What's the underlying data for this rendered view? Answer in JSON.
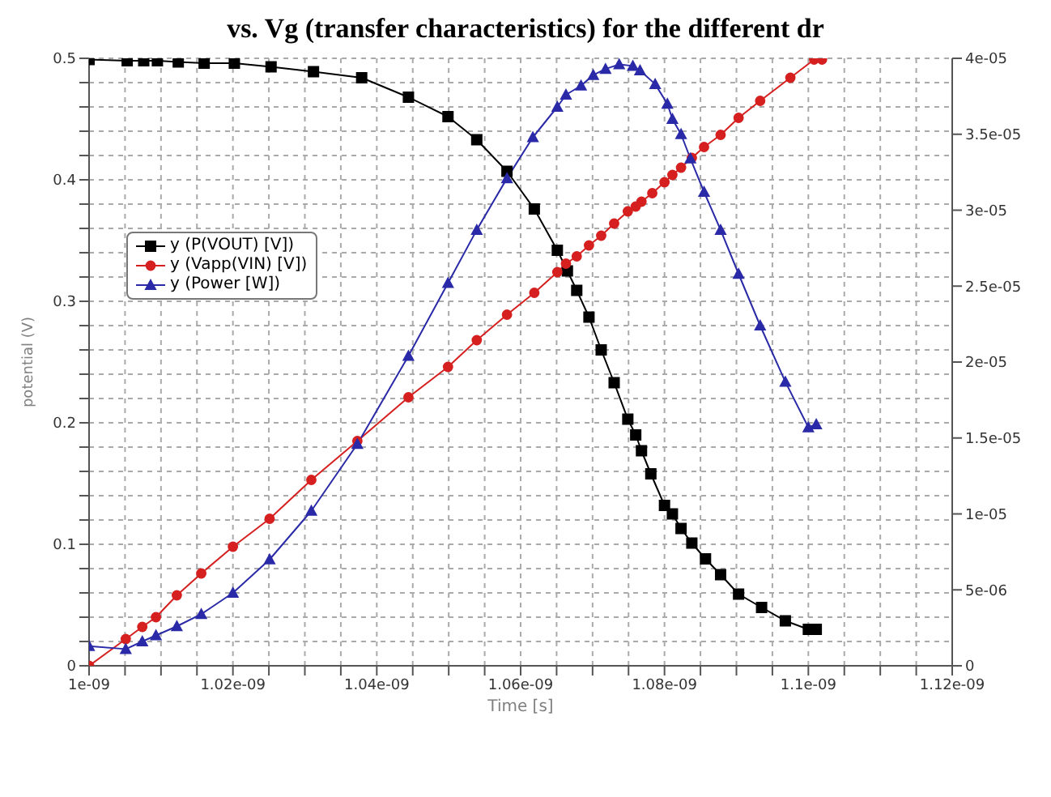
{
  "chart_data": {
    "type": "line",
    "title": "vs. Vg (transfer characteristics) for the different dr",
    "xlabel": "Time [s]",
    "ylabel": "potential (V)",
    "xlim": [
      1e-09,
      1.12e-09
    ],
    "xticks": [
      {
        "value": 1e-09,
        "label": "1e-09"
      },
      {
        "value": 1.005e-09,
        "label": null
      },
      {
        "value": 1.01e-09,
        "label": null
      },
      {
        "value": 1.015e-09,
        "label": null
      },
      {
        "value": 1.02e-09,
        "label": "1.02e-09"
      },
      {
        "value": 1.025e-09,
        "label": null
      },
      {
        "value": 1.03e-09,
        "label": null
      },
      {
        "value": 1.035e-09,
        "label": null
      },
      {
        "value": 1.04e-09,
        "label": "1.04e-09"
      },
      {
        "value": 1.045e-09,
        "label": null
      },
      {
        "value": 1.05e-09,
        "label": null
      },
      {
        "value": 1.055e-09,
        "label": null
      },
      {
        "value": 1.06e-09,
        "label": "1.06e-09"
      },
      {
        "value": 1.065e-09,
        "label": null
      },
      {
        "value": 1.07e-09,
        "label": null
      },
      {
        "value": 1.075e-09,
        "label": null
      },
      {
        "value": 1.08e-09,
        "label": "1.08e-09"
      },
      {
        "value": 1.085e-09,
        "label": null
      },
      {
        "value": 1.09e-09,
        "label": null
      },
      {
        "value": 1.095e-09,
        "label": null
      },
      {
        "value": 1.1e-09,
        "label": "1.1e-09"
      },
      {
        "value": 1.105e-09,
        "label": null
      },
      {
        "value": 1.11e-09,
        "label": null
      },
      {
        "value": 1.115e-09,
        "label": null
      },
      {
        "value": 1.12e-09,
        "label": "1.12e-09"
      }
    ],
    "ylim": [
      0,
      0.5
    ],
    "yticks": [
      0,
      {
        "value": 0.02,
        "label": null
      },
      {
        "value": 0.04,
        "label": null
      },
      {
        "value": 0.06,
        "label": null
      },
      {
        "value": 0.08,
        "label": null
      },
      0.1,
      {
        "value": 0.12,
        "label": null
      },
      {
        "value": 0.14,
        "label": null
      },
      {
        "value": 0.16,
        "label": null
      },
      {
        "value": 0.18,
        "label": null
      },
      0.2,
      {
        "value": 0.22,
        "label": null
      },
      {
        "value": 0.24,
        "label": null
      },
      {
        "value": 0.26,
        "label": null
      },
      {
        "value": 0.28,
        "label": null
      },
      0.3,
      {
        "value": 0.32,
        "label": null
      },
      {
        "value": 0.34,
        "label": null
      },
      {
        "value": 0.36,
        "label": null
      },
      {
        "value": 0.38,
        "label": null
      },
      0.4,
      {
        "value": 0.42,
        "label": null
      },
      {
        "value": 0.44,
        "label": null
      },
      {
        "value": 0.46,
        "label": null
      },
      {
        "value": 0.48,
        "label": null
      },
      0.5
    ],
    "y2lim": [
      0,
      4e-05
    ],
    "y2ticks": [
      0,
      {
        "value": 5e-06,
        "label": "5e-06"
      },
      {
        "value": 1e-05,
        "label": "1e-05"
      },
      {
        "value": 1.5e-05,
        "label": "1.5e-05"
      },
      {
        "value": 2e-05,
        "label": "2e-05"
      },
      {
        "value": 2.5e-05,
        "label": "2.5e-05"
      },
      {
        "value": 3e-05,
        "label": "3e-05"
      },
      {
        "value": 3.5e-05,
        "label": "3.5e-05"
      },
      {
        "value": 4e-05,
        "label": "4e-05"
      }
    ],
    "grid": true,
    "legend": "left",
    "line_style": "solid",
    "series": [
      {
        "name": "y (P(VOUT) [V])",
        "color": "#000000",
        "marker": "square",
        "x": [
          1e-09,
          1.0053e-09,
          1.0076e-09,
          1.0095e-09,
          1.0124e-09,
          1.016e-09,
          1.0202e-09,
          1.0253e-09,
          1.0312e-09,
          1.0379e-09,
          1.0444e-09,
          1.0499e-09,
          1.0539e-09,
          1.0581e-09,
          1.0619e-09,
          1.0651e-09,
          1.0665e-09,
          1.0678e-09,
          1.0695e-09,
          1.0712e-09,
          1.073e-09,
          1.0749e-09,
          1.076e-09,
          1.0768e-09,
          1.0781e-09,
          1.08e-09,
          1.0811e-09,
          1.0823e-09,
          1.0838e-09,
          1.0857e-09,
          1.0878e-09,
          1.0903e-09,
          1.0935e-09,
          1.0968e-09,
          1.1e-09,
          1.1011e-09
        ],
        "values": [
          0.499,
          0.498,
          0.498,
          0.498,
          0.497,
          0.496,
          0.496,
          0.493,
          0.489,
          0.484,
          0.468,
          0.452,
          0.433,
          0.407,
          0.376,
          0.342,
          0.325,
          0.309,
          0.287,
          0.26,
          0.233,
          0.203,
          0.19,
          0.177,
          0.158,
          0.132,
          0.125,
          0.113,
          0.101,
          0.088,
          0.075,
          0.059,
          0.048,
          0.037,
          0.03,
          0.03
        ]
      },
      {
        "name": "y (Vapp(VIN) [V])",
        "color": "#d62020",
        "marker": "circle",
        "x": [
          1e-09,
          1.0051e-09,
          1.0074e-09,
          1.0093e-09,
          1.0122e-09,
          1.0156e-09,
          1.02e-09,
          1.0251e-09,
          1.0309e-09,
          1.0373e-09,
          1.0444e-09,
          1.0499e-09,
          1.0539e-09,
          1.0581e-09,
          1.0619e-09,
          1.0651e-09,
          1.0663e-09,
          1.0678e-09,
          1.0695e-09,
          1.0712e-09,
          1.073e-09,
          1.0749e-09,
          1.076e-09,
          1.0768e-09,
          1.0783e-09,
          1.08e-09,
          1.0811e-09,
          1.0823e-09,
          1.0838e-09,
          1.0855e-09,
          1.0878e-09,
          1.0903e-09,
          1.0933e-09,
          1.0975e-09,
          1.1008e-09,
          1.1019e-09
        ],
        "values": [
          0.0,
          0.022,
          0.032,
          0.04,
          0.058,
          0.076,
          0.098,
          0.121,
          0.153,
          0.185,
          0.221,
          0.246,
          0.268,
          0.289,
          0.307,
          0.324,
          0.331,
          0.337,
          0.346,
          0.354,
          0.364,
          0.374,
          0.378,
          0.382,
          0.389,
          0.398,
          0.404,
          0.41,
          0.418,
          0.427,
          0.437,
          0.451,
          0.465,
          0.484,
          0.499,
          0.499
        ]
      },
      {
        "name": "y (Power [W])",
        "color": "#2a2aa8",
        "marker": "triangle",
        "axis": "y2",
        "x": [
          1e-09,
          1.0051e-09,
          1.0074e-09,
          1.0093e-09,
          1.0122e-09,
          1.0156e-09,
          1.02e-09,
          1.0251e-09,
          1.0309e-09,
          1.0373e-09,
          1.0444e-09,
          1.0499e-09,
          1.0539e-09,
          1.0581e-09,
          1.0617e-09,
          1.0651e-09,
          1.0663e-09,
          1.0684e-09,
          1.0701e-09,
          1.0718e-09,
          1.0737e-09,
          1.0756e-09,
          1.0766e-09,
          1.0787e-09,
          1.0804e-09,
          1.0811e-09,
          1.0823e-09,
          1.0836e-09,
          1.0855e-09,
          1.0878e-09,
          1.0903e-09,
          1.0933e-09,
          1.0968e-09,
          1.1e-09,
          1.1011e-09
        ],
        "values": [
          1.3e-06,
          1.1e-06,
          1.6e-06,
          2e-06,
          2.6e-06,
          3.4e-06,
          4.8e-06,
          7e-06,
          1.02e-05,
          1.46e-05,
          2.04e-05,
          2.52e-05,
          2.87e-05,
          3.21e-05,
          3.48e-05,
          3.68e-05,
          3.76e-05,
          3.82e-05,
          3.89e-05,
          3.93e-05,
          3.96e-05,
          3.95e-05,
          3.92e-05,
          3.83e-05,
          3.7e-05,
          3.6e-05,
          3.5e-05,
          3.34e-05,
          3.12e-05,
          2.87e-05,
          2.58e-05,
          2.24e-05,
          1.87e-05,
          1.57e-05,
          1.59e-05
        ]
      }
    ]
  }
}
